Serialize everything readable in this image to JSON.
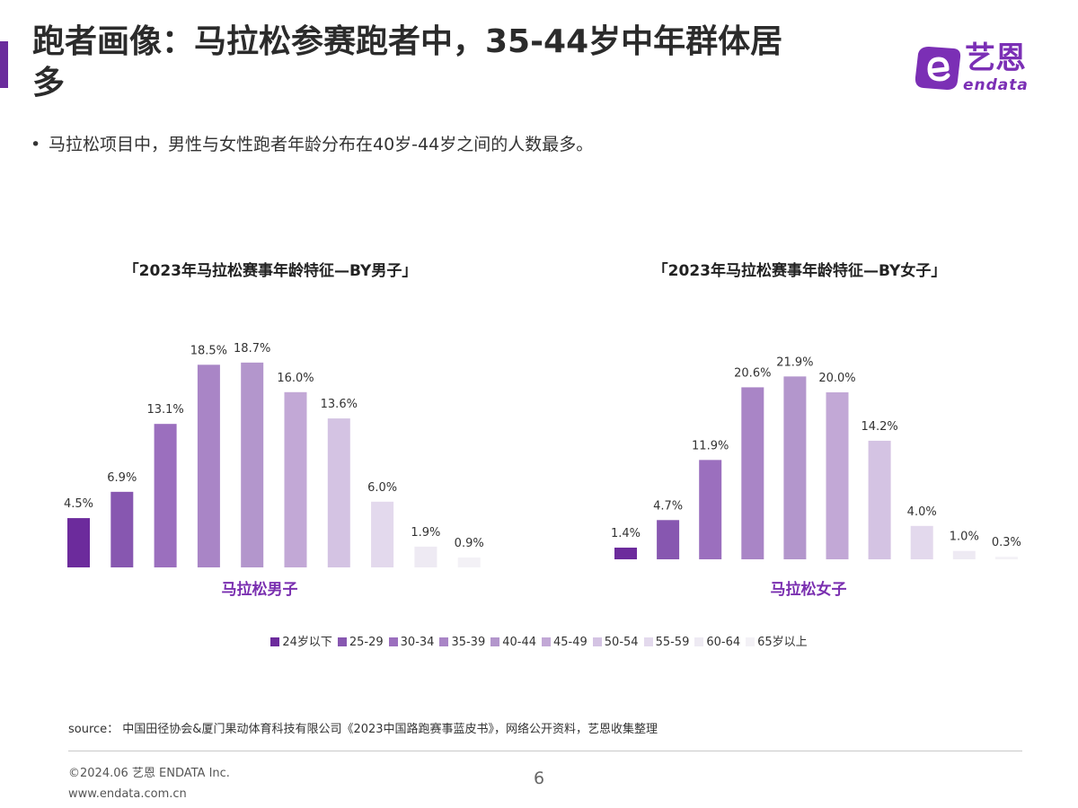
{
  "header": {
    "title": "跑者画像：马拉松参赛跑者中，35-44岁中年群体居\n多",
    "bullet": "马拉松项目中，男性与女性跑者年龄分布在40岁-44岁之间的人数最多。"
  },
  "logo": {
    "text_cn": "艺恩",
    "text_en": "endata"
  },
  "colors": {
    "accent": "#6a2c9c",
    "logo": "#7b2fb5",
    "category_label": "#7a2fb0",
    "bars": [
      "#6c2b9c",
      "#8757b0",
      "#9b6fbe",
      "#a985c6",
      "#b396cc",
      "#c2a8d6",
      "#d4c3e3",
      "#e3d9ed",
      "#eeeaf3",
      "#f3f1f6"
    ]
  },
  "chart_data": [
    {
      "type": "bar",
      "title": "「2023年马拉松赛事年龄特征—BY男子」",
      "xlabel": "马拉松男子",
      "categories": [
        "24岁以下",
        "25-29",
        "30-34",
        "35-39",
        "40-44",
        "45-49",
        "50-54",
        "55-59",
        "60-64",
        "65岁以上"
      ],
      "values": [
        4.5,
        6.9,
        13.1,
        18.5,
        18.7,
        16.0,
        13.6,
        6.0,
        1.9,
        0.9
      ],
      "value_labels": [
        "4.5%",
        "6.9%",
        "13.1%",
        "18.5%",
        "18.7%",
        "16.0%",
        "13.6%",
        "6.0%",
        "1.9%",
        "0.9%"
      ]
    },
    {
      "type": "bar",
      "title": "「2023年马拉松赛事年龄特征—BY女子」",
      "xlabel": "马拉松女子",
      "categories": [
        "24岁以下",
        "25-29",
        "30-34",
        "35-39",
        "40-44",
        "45-49",
        "50-54",
        "55-59",
        "60-64",
        "65岁以上"
      ],
      "values": [
        1.4,
        4.7,
        11.9,
        20.6,
        21.9,
        20.0,
        14.2,
        4.0,
        1.0,
        0.3
      ],
      "value_labels": [
        "1.4%",
        "4.7%",
        "11.9%",
        "20.6%",
        "21.9%",
        "20.0%",
        "14.2%",
        "4.0%",
        "1.0%",
        "0.3%"
      ]
    }
  ],
  "legend": {
    "items": [
      "24岁以下",
      "25-29",
      "30-34",
      "35-39",
      "40-44",
      "45-49",
      "50-54",
      "55-59",
      "60-64",
      "65岁以上"
    ]
  },
  "footer": {
    "source": "source： 中国田径协会&厦门果动体育科技有限公司《2023中国路跑赛事蓝皮书》，网络公开资料，艺恩收集整理",
    "copyright": "©2024.06 艺恩 ENDATA Inc.",
    "website": "www.endata.com.cn",
    "page_number": "6"
  }
}
